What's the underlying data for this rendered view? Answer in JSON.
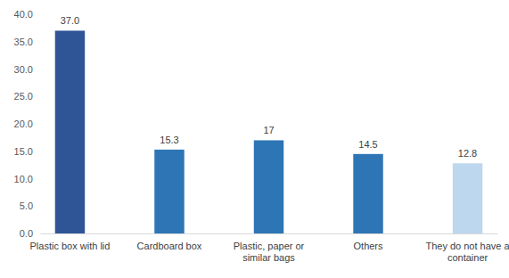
{
  "chart_data": {
    "type": "bar",
    "categories": [
      "Plastic box with lid",
      "Cardboard box",
      "Plastic, paper or similar bags",
      "Others",
      "They do not have a container"
    ],
    "values": [
      37.0,
      15.3,
      17,
      14.5,
      12.8
    ],
    "value_labels": [
      "37.0",
      "15.3",
      "17",
      "14.5",
      "12.8"
    ],
    "colors": [
      "#2f5597",
      "#2e75b6",
      "#2e75b6",
      "#2e75b6",
      "#bdd7ee"
    ],
    "ylim": [
      0,
      40
    ],
    "yticks": [
      {
        "value": 0,
        "label": "0.0"
      },
      {
        "value": 5,
        "label": "5.0"
      },
      {
        "value": 10,
        "label": "10.0"
      },
      {
        "value": 15,
        "label": "15.0"
      },
      {
        "value": 20,
        "label": "20.0"
      },
      {
        "value": 25,
        "label": "25.0"
      },
      {
        "value": 30,
        "label": "30.0"
      },
      {
        "value": 35,
        "label": "35.0"
      },
      {
        "value": 40,
        "label": "40.0"
      }
    ],
    "grid": false,
    "data_labels": true
  }
}
